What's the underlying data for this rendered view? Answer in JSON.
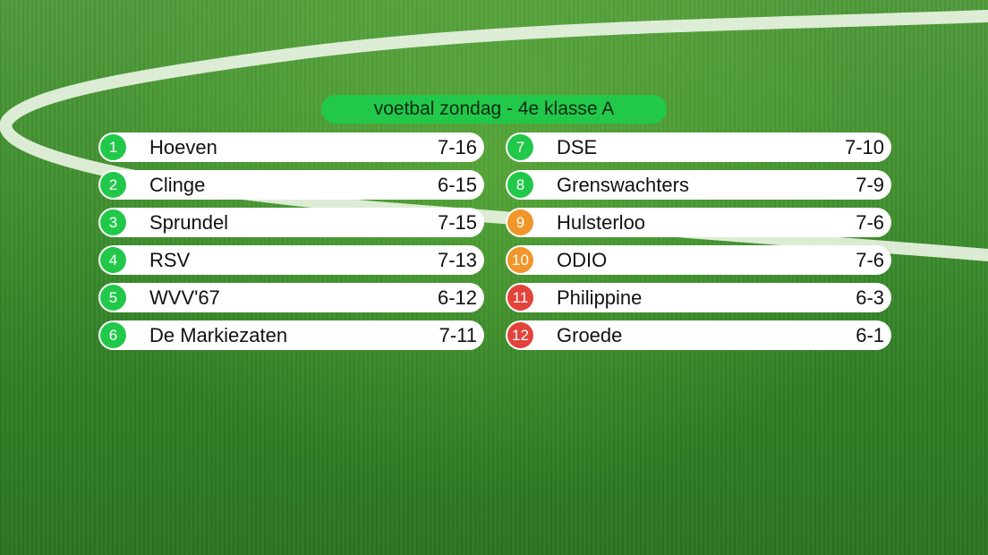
{
  "title": "voetbal zondag - 4e klasse A",
  "colors": {
    "promotion": "#22c84a",
    "neutral": "#22c84a",
    "playoff": "#f0962a",
    "relegation": "#e2433a",
    "title_bg": "#22c84a"
  },
  "standings": {
    "left": [
      {
        "rank": "1",
        "team": "Hoeven",
        "score": "7-16",
        "zone": "neutral"
      },
      {
        "rank": "2",
        "team": "Clinge",
        "score": "6-15",
        "zone": "neutral"
      },
      {
        "rank": "3",
        "team": "Sprundel",
        "score": "7-15",
        "zone": "neutral"
      },
      {
        "rank": "4",
        "team": "RSV",
        "score": "7-13",
        "zone": "neutral"
      },
      {
        "rank": "5",
        "team": "WVV'67",
        "score": "6-12",
        "zone": "neutral"
      },
      {
        "rank": "6",
        "team": "De Markiezaten",
        "score": "7-11",
        "zone": "neutral"
      }
    ],
    "right": [
      {
        "rank": "7",
        "team": "DSE",
        "score": "7-10",
        "zone": "neutral"
      },
      {
        "rank": "8",
        "team": "Grenswachters",
        "score": "7-9",
        "zone": "neutral"
      },
      {
        "rank": "9",
        "team": "Hulsterloo",
        "score": "7-6",
        "zone": "playoff"
      },
      {
        "rank": "10",
        "team": "ODIO",
        "score": "7-6",
        "zone": "playoff"
      },
      {
        "rank": "11",
        "team": "Philippine",
        "score": "6-3",
        "zone": "relegation"
      },
      {
        "rank": "12",
        "team": "Groede",
        "score": "6-1",
        "zone": "relegation"
      }
    ]
  }
}
